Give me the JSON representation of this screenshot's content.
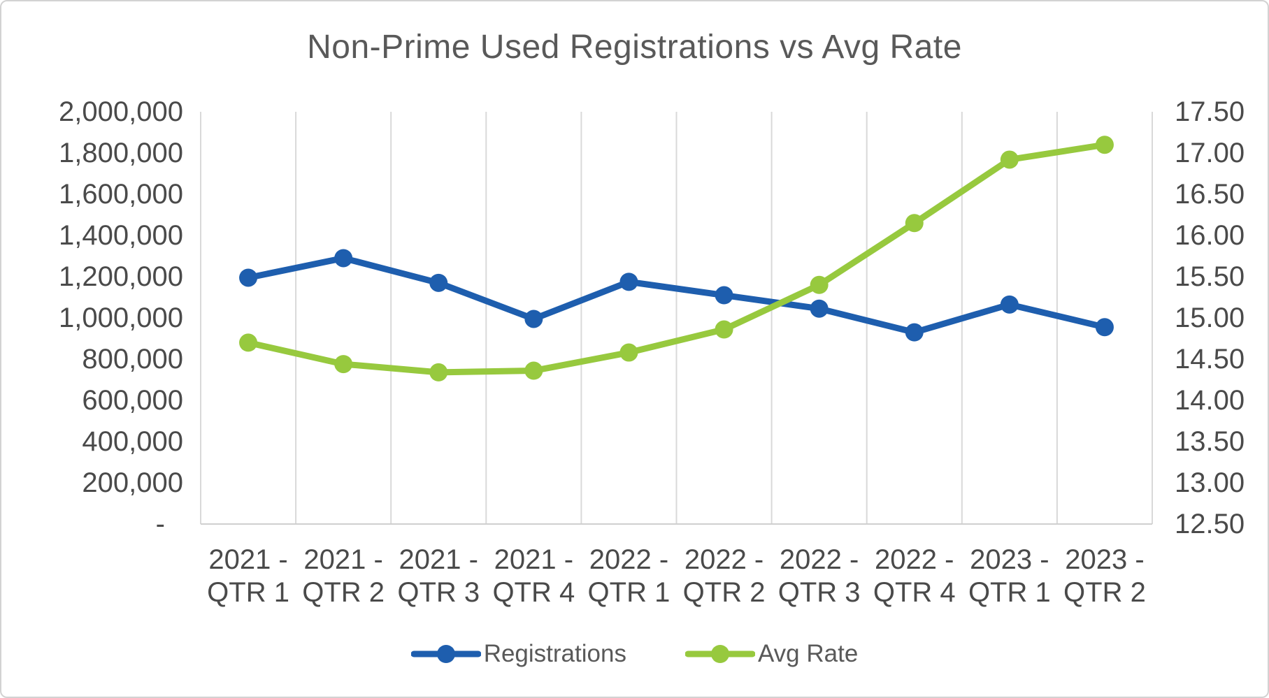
{
  "chart_data": {
    "type": "line",
    "title": "Non-Prime Used Registrations vs Avg Rate",
    "categories": [
      "2021 - QTR 1",
      "2021 - QTR 2",
      "2021 - QTR 3",
      "2021 - QTR 4",
      "2022 - QTR 1",
      "2022 - QTR 2",
      "2022 - QTR 3",
      "2022 - QTR 4",
      "2023 - QTR 1",
      "2023 - QTR 2"
    ],
    "series": [
      {
        "name": "Registrations",
        "axis": "left",
        "color": "#1e5eae",
        "values": [
          1195000,
          1290000,
          1170000,
          995000,
          1175000,
          1110000,
          1045000,
          930000,
          1065000,
          955000
        ]
      },
      {
        "name": "Avg Rate",
        "axis": "right",
        "color": "#97c93e",
        "values": [
          14.7,
          14.44,
          14.34,
          14.36,
          14.58,
          14.86,
          15.4,
          16.15,
          16.92,
          17.1
        ]
      }
    ],
    "axes": {
      "left": {
        "min": 0,
        "max": 2000000,
        "step": 200000,
        "tick_labels": [
          "2,000,000",
          "1,800,000",
          "1,600,000",
          "1,400,000",
          "1,200,000",
          "1,000,000",
          "800,000",
          "600,000",
          "400,000",
          "200,000",
          "-"
        ]
      },
      "right": {
        "min": 12.5,
        "max": 17.5,
        "step": 0.5,
        "tick_labels": [
          "17.50",
          "17.00",
          "16.50",
          "16.00",
          "15.50",
          "15.00",
          "14.50",
          "14.00",
          "13.50",
          "13.00",
          "12.50"
        ]
      }
    },
    "grid": "vertical-only",
    "legend_position": "bottom"
  },
  "colors": {
    "title_text": "#595959",
    "tick_text": "#4a4a4a",
    "gridline": "#d9d9d9",
    "axis_line": "#cfcfcf",
    "background": "#ffffff",
    "border": "#d2d2d2"
  }
}
